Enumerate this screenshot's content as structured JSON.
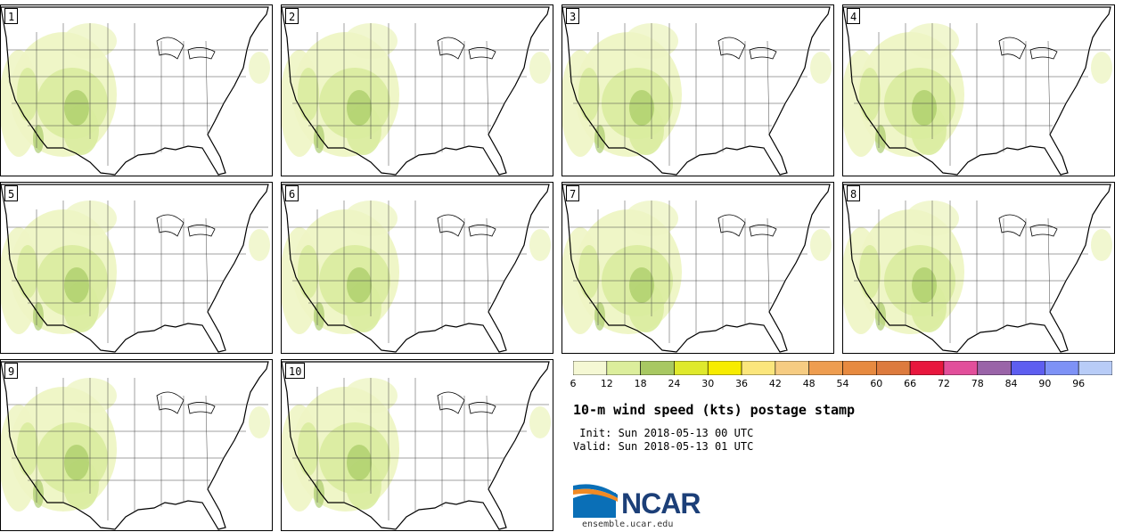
{
  "panels": [
    {
      "label": "1"
    },
    {
      "label": "2"
    },
    {
      "label": "3"
    },
    {
      "label": "4"
    },
    {
      "label": "5"
    },
    {
      "label": "6"
    },
    {
      "label": "7"
    },
    {
      "label": "8"
    },
    {
      "label": "9"
    },
    {
      "label": "10"
    }
  ],
  "colorbar": {
    "ticks": [
      "6",
      "12",
      "18",
      "24",
      "30",
      "36",
      "42",
      "48",
      "54",
      "60",
      "66",
      "72",
      "78",
      "84",
      "90",
      "96"
    ],
    "colors": [
      "#f5f8d4",
      "#dcee9c",
      "#a8c862",
      "#dfe92c",
      "#f7ec00",
      "#fbe67c",
      "#f6cc82",
      "#ee9d50",
      "#e78a40",
      "#dd7b3e",
      "#e8173e",
      "#e24f9b",
      "#9a64a8",
      "#5e5ef0",
      "#7e92f6",
      "#b8ccf7"
    ]
  },
  "title": "10-m wind speed (kts) postage stamp",
  "init_text": " Init: Sun 2018-05-13 00 UTC",
  "valid_text": "Valid: Sun 2018-05-13 01 UTC",
  "logo": {
    "name": "NCAR",
    "url_text": "ensemble.ucar.edu"
  },
  "map_colors": {
    "light": "#eef5c4",
    "mid": "#d9ec9e",
    "dark": "#9fc55a"
  }
}
